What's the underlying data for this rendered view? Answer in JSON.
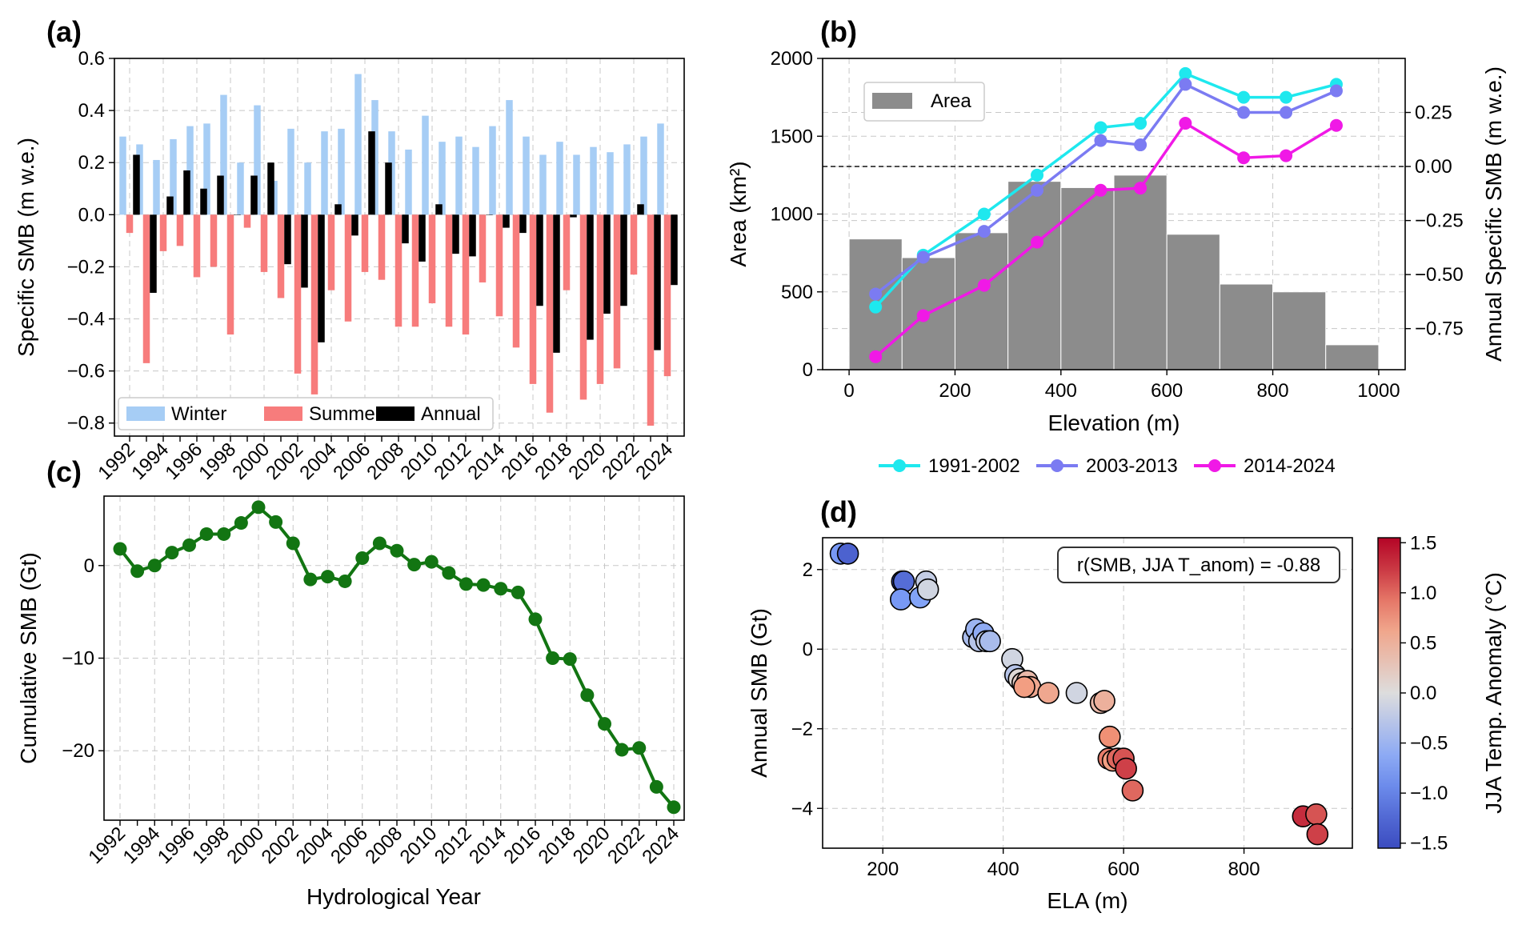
{
  "chart_data": [
    {
      "panel": "(a)",
      "type": "bar",
      "ylabel": "Specific SMB (m w.e.)",
      "ylim": [
        -0.85,
        0.6
      ],
      "yticks": [
        0.6,
        0.4,
        0.2,
        0.0,
        -0.2,
        -0.4,
        -0.6,
        -0.8
      ],
      "ytick_labels": [
        "0.6",
        "0.4",
        "0.2",
        "0.0",
        "−0.2",
        "−0.4",
        "−0.6",
        "−0.8"
      ],
      "categories": [
        1992,
        1993,
        1994,
        1995,
        1996,
        1997,
        1998,
        1999,
        2000,
        2001,
        2002,
        2003,
        2004,
        2005,
        2006,
        2007,
        2008,
        2009,
        2010,
        2011,
        2012,
        2013,
        2014,
        2015,
        2016,
        2017,
        2018,
        2019,
        2020,
        2021,
        2022,
        2023,
        2024
      ],
      "xtick_labels": [
        "1992",
        "1994",
        "1996",
        "1998",
        "2000",
        "2002",
        "2004",
        "2006",
        "2008",
        "2010",
        "2012",
        "2014",
        "2016",
        "2018",
        "2020",
        "2022",
        "2024"
      ],
      "legend": [
        "Winter",
        "Summer",
        "Annual"
      ],
      "colors": {
        "winter": "#a6cdf5",
        "summer": "#f77c7c",
        "annual": "#000000"
      },
      "series": [
        {
          "name": "Winter",
          "values": [
            0.3,
            0.27,
            0.21,
            0.29,
            0.34,
            0.35,
            0.46,
            0.2,
            0.42,
            0.13,
            0.33,
            0.2,
            0.32,
            0.33,
            0.54,
            0.44,
            0.32,
            0.25,
            0.38,
            0.28,
            0.3,
            0.26,
            0.34,
            0.44,
            0.3,
            0.23,
            0.28,
            0.23,
            0.26,
            0.24,
            0.27,
            0.3,
            0.35
          ]
        },
        {
          "name": "Summer",
          "values": [
            -0.07,
            -0.57,
            -0.14,
            -0.12,
            -0.24,
            -0.2,
            -0.46,
            -0.05,
            -0.22,
            -0.32,
            -0.61,
            -0.69,
            -0.29,
            -0.41,
            -0.22,
            -0.25,
            -0.43,
            -0.43,
            -0.34,
            -0.43,
            -0.46,
            -0.26,
            -0.39,
            -0.51,
            -0.65,
            -0.76,
            -0.29,
            -0.71,
            -0.65,
            -0.59,
            -0.23,
            -0.81,
            -0.62
          ]
        },
        {
          "name": "Annual",
          "values": [
            0.23,
            -0.3,
            0.07,
            0.17,
            0.1,
            0.15,
            0.0,
            0.15,
            0.2,
            -0.19,
            -0.28,
            -0.49,
            0.04,
            -0.08,
            0.32,
            0.2,
            -0.11,
            -0.18,
            0.04,
            -0.15,
            -0.16,
            0.0,
            -0.05,
            -0.07,
            -0.35,
            -0.53,
            -0.01,
            -0.48,
            -0.38,
            -0.35,
            0.04,
            -0.52,
            -0.27
          ]
        }
      ]
    },
    {
      "panel": "(b)",
      "type": "bar+line",
      "xlabel": "Elevation (m)",
      "ylabel": "Area (km²)",
      "ylabel_right": "Annual Specific SMB (m w.e.)",
      "xlim": [
        -50,
        1050
      ],
      "ylim": [
        0,
        2000
      ],
      "ylim_right": [
        -0.94,
        0.5
      ],
      "xticks": [
        0,
        200,
        400,
        600,
        800,
        1000
      ],
      "xtick_labels": [
        "0",
        "200",
        "400",
        "600",
        "800",
        "1000"
      ],
      "yticks": [
        0,
        500,
        1000,
        1500,
        2000
      ],
      "ytick_labels": [
        "0",
        "500",
        "1000",
        "1500",
        "2000"
      ],
      "yticks_right": [
        0.25,
        0.0,
        -0.25,
        -0.5,
        -0.75
      ],
      "ytick_labels_right": [
        "0.25",
        "0.00",
        "−0.25",
        "−0.50",
        "−0.75"
      ],
      "area_legend": "Area",
      "area_color": "#8c8c8c",
      "area_bins": [
        {
          "x0": 0,
          "x1": 100,
          "value": 840
        },
        {
          "x0": 100,
          "x1": 200,
          "value": 720
        },
        {
          "x0": 200,
          "x1": 300,
          "value": 880
        },
        {
          "x0": 300,
          "x1": 400,
          "value": 1210
        },
        {
          "x0": 400,
          "x1": 500,
          "value": 1170
        },
        {
          "x0": 500,
          "x1": 600,
          "value": 1250
        },
        {
          "x0": 600,
          "x1": 700,
          "value": 870
        },
        {
          "x0": 700,
          "x1": 800,
          "value": 550
        },
        {
          "x0": 800,
          "x1": 900,
          "value": 500
        },
        {
          "x0": 900,
          "x1": 1000,
          "value": 160
        }
      ],
      "x": [
        50,
        140,
        255,
        355,
        475,
        550,
        635,
        745,
        825,
        920
      ],
      "series": [
        {
          "name": "1991-2002",
          "color": "#1ee8ee",
          "values": [
            -0.65,
            -0.41,
            -0.22,
            -0.04,
            0.18,
            0.2,
            0.43,
            0.32,
            0.32,
            0.38
          ]
        },
        {
          "name": "2003-2013",
          "color": "#7b7bf2",
          "values": [
            -0.59,
            -0.42,
            -0.3,
            -0.11,
            0.12,
            0.1,
            0.38,
            0.25,
            0.25,
            0.35
          ]
        },
        {
          "name": "2014-2024",
          "color": "#f019e6",
          "values": [
            -0.88,
            -0.69,
            -0.55,
            -0.35,
            -0.11,
            -0.1,
            0.2,
            0.04,
            0.05,
            0.19
          ]
        }
      ],
      "legend": [
        "1991-2002",
        "2003-2013",
        "2014-2024"
      ]
    },
    {
      "panel": "(c)",
      "type": "line",
      "xlabel": "Hydrological Year",
      "ylabel": "Cumulative SMB (Gt)",
      "color": "#127512",
      "ylim": [
        -27.5,
        7.5
      ],
      "yticks": [
        0,
        -10,
        -20
      ],
      "ytick_labels": [
        "0",
        "−10",
        "−20"
      ],
      "xtick_labels": [
        "1992",
        "1994",
        "1996",
        "1998",
        "2000",
        "2002",
        "2004",
        "2006",
        "2008",
        "2010",
        "2012",
        "2014",
        "2016",
        "2018",
        "2020",
        "2022",
        "2024"
      ],
      "x": [
        1992,
        1993,
        1994,
        1995,
        1996,
        1997,
        1998,
        1999,
        2000,
        2001,
        2002,
        2003,
        2004,
        2005,
        2006,
        2007,
        2008,
        2009,
        2010,
        2011,
        2012,
        2013,
        2014,
        2015,
        2016,
        2017,
        2018,
        2019,
        2020,
        2021,
        2022,
        2023,
        2024
      ],
      "values": [
        1.8,
        -0.6,
        0.0,
        1.4,
        2.2,
        3.4,
        3.4,
        4.6,
        6.3,
        4.7,
        2.4,
        -1.5,
        -1.2,
        -1.7,
        0.8,
        2.4,
        1.6,
        0.1,
        0.4,
        -0.8,
        -2.0,
        -2.1,
        -2.5,
        -2.9,
        -5.8,
        -10.0,
        -10.1,
        -14.0,
        -17.1,
        -19.9,
        -19.7,
        -23.9,
        -26.1
      ]
    },
    {
      "panel": "(d)",
      "type": "scatter",
      "xlabel": "ELA (m)",
      "ylabel": "Annual SMB (Gt)",
      "xlim": [
        100,
        980
      ],
      "ylim": [
        -5.0,
        2.8
      ],
      "xticks": [
        200,
        400,
        600,
        800
      ],
      "xtick_labels": [
        "200",
        "400",
        "600",
        "800"
      ],
      "yticks": [
        2,
        0,
        -2,
        -4
      ],
      "ytick_labels": [
        "2",
        "0",
        "−2",
        "−4"
      ],
      "annotation": "r(SMB, JJA T_anom) = -0.88",
      "colorbar_label": "JJA Temp. Anomaly (°C)",
      "colorbar_range": [
        -1.55,
        1.55
      ],
      "colorbar_ticks": [
        1.5,
        1.0,
        0.5,
        0.0,
        -0.5,
        -1.0,
        -1.5
      ],
      "colorbar_tick_labels": [
        "1.5",
        "1.0",
        "0.5",
        "0.0",
        "−0.5",
        "−1.0",
        "−1.5"
      ],
      "points": [
        {
          "x": 130,
          "y": 2.4,
          "t": -0.8
        },
        {
          "x": 142,
          "y": 2.4,
          "t": -1.3
        },
        {
          "x": 232,
          "y": 1.7,
          "t": -1.5
        },
        {
          "x": 235,
          "y": 1.7,
          "t": -1.2
        },
        {
          "x": 230,
          "y": 1.25,
          "t": -0.8
        },
        {
          "x": 262,
          "y": 1.3,
          "t": -0.7
        },
        {
          "x": 272,
          "y": 1.7,
          "t": -0.2
        },
        {
          "x": 275,
          "y": 1.5,
          "t": -0.1
        },
        {
          "x": 350,
          "y": 0.3,
          "t": -0.4
        },
        {
          "x": 355,
          "y": 0.5,
          "t": -0.5
        },
        {
          "x": 360,
          "y": 0.2,
          "t": -0.3
        },
        {
          "x": 367,
          "y": 0.4,
          "t": -0.6
        },
        {
          "x": 372,
          "y": 0.2,
          "t": -0.2
        },
        {
          "x": 378,
          "y": 0.2,
          "t": -0.4
        },
        {
          "x": 415,
          "y": -0.25,
          "t": -0.1
        },
        {
          "x": 420,
          "y": -0.65,
          "t": -0.3
        },
        {
          "x": 426,
          "y": -0.75,
          "t": 0.05
        },
        {
          "x": 432,
          "y": -0.85,
          "t": 0.2
        },
        {
          "x": 440,
          "y": -0.8,
          "t": 0.4
        },
        {
          "x": 445,
          "y": -0.95,
          "t": 0.6
        },
        {
          "x": 435,
          "y": -0.95,
          "t": 0.7
        },
        {
          "x": 475,
          "y": -1.1,
          "t": 0.6
        },
        {
          "x": 522,
          "y": -1.1,
          "t": -0.1
        },
        {
          "x": 562,
          "y": -1.35,
          "t": 0.4
        },
        {
          "x": 568,
          "y": -1.3,
          "t": 0.5
        },
        {
          "x": 577,
          "y": -2.2,
          "t": 0.8
        },
        {
          "x": 575,
          "y": -2.75,
          "t": 0.9
        },
        {
          "x": 582,
          "y": -2.8,
          "t": 0.7
        },
        {
          "x": 590,
          "y": -2.75,
          "t": 1.0
        },
        {
          "x": 600,
          "y": -2.75,
          "t": 1.1
        },
        {
          "x": 604,
          "y": -3.0,
          "t": 1.2
        },
        {
          "x": 615,
          "y": -3.55,
          "t": 1.0
        },
        {
          "x": 898,
          "y": -4.2,
          "t": 1.3
        },
        {
          "x": 920,
          "y": -4.15,
          "t": 1.1
        },
        {
          "x": 922,
          "y": -4.65,
          "t": 1.2
        }
      ]
    }
  ]
}
